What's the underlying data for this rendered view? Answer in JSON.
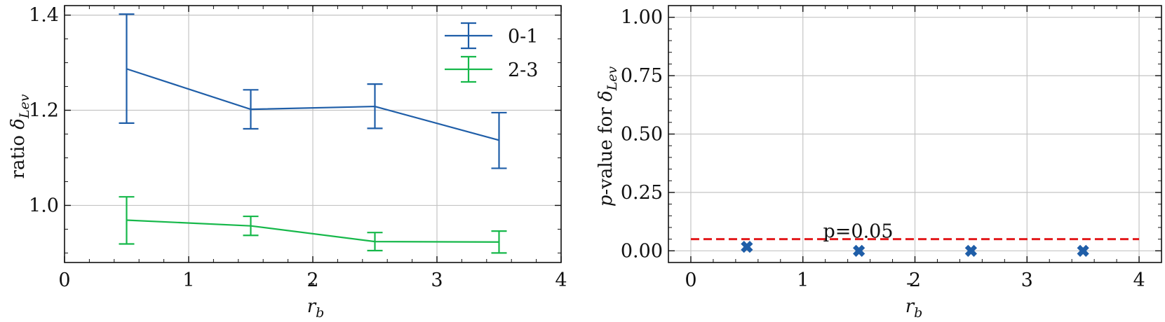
{
  "chart_data": [
    {
      "type": "line",
      "title": "",
      "xlabel": "r̄b",
      "ylabel": "ratio δLev",
      "xlim": [
        0,
        4
      ],
      "ylim": [
        0.88,
        1.42
      ],
      "xticks": [
        0,
        1,
        2,
        3,
        4
      ],
      "xtick_labels": [
        "0",
        "1",
        "2",
        "3",
        "4"
      ],
      "yticks": [
        1.0,
        1.2,
        1.4
      ],
      "ytick_labels": [
        "1.0",
        "1.2",
        "1.4"
      ],
      "grid": true,
      "legend_position": "top-right",
      "x": [
        0.5,
        1.5,
        2.5,
        3.5
      ],
      "series": [
        {
          "name": "0-1",
          "color": "#1f5ea8",
          "values": [
            1.287,
            1.202,
            1.208,
            1.137
          ],
          "err_low": [
            1.173,
            1.161,
            1.162,
            1.078
          ],
          "err_high": [
            1.402,
            1.243,
            1.255,
            1.195
          ]
        },
        {
          "name": "2-3",
          "color": "#16b84a",
          "values": [
            0.969,
            0.957,
            0.924,
            0.923
          ],
          "err_low": [
            0.919,
            0.937,
            0.905,
            0.9
          ],
          "err_high": [
            1.018,
            0.977,
            0.943,
            0.946
          ]
        }
      ]
    },
    {
      "type": "scatter",
      "title": "",
      "xlabel": "r̄b",
      "ylabel": "p-value for δLev",
      "xlim": [
        -0.2,
        4.2
      ],
      "ylim": [
        -0.05,
        1.05
      ],
      "xticks": [
        0,
        1,
        2,
        3,
        4
      ],
      "xtick_labels": [
        "0",
        "1",
        "2",
        "3",
        "4"
      ],
      "yticks": [
        0.0,
        0.25,
        0.5,
        0.75,
        1.0
      ],
      "ytick_labels": [
        "0.00",
        "0.25",
        "0.50",
        "0.75",
        "1.00"
      ],
      "grid": true,
      "series": [
        {
          "color": "#1f5ea8",
          "marker": "x-filled",
          "x": [
            0.5,
            1.5,
            2.5,
            3.5
          ],
          "values": [
            0.017,
            0.0,
            0.0,
            0.0
          ]
        }
      ],
      "threshold": {
        "value": 0.05,
        "color": "#e31a1c",
        "style": "dashed",
        "label": "p=0.05",
        "label_x": 1.18
      }
    }
  ]
}
